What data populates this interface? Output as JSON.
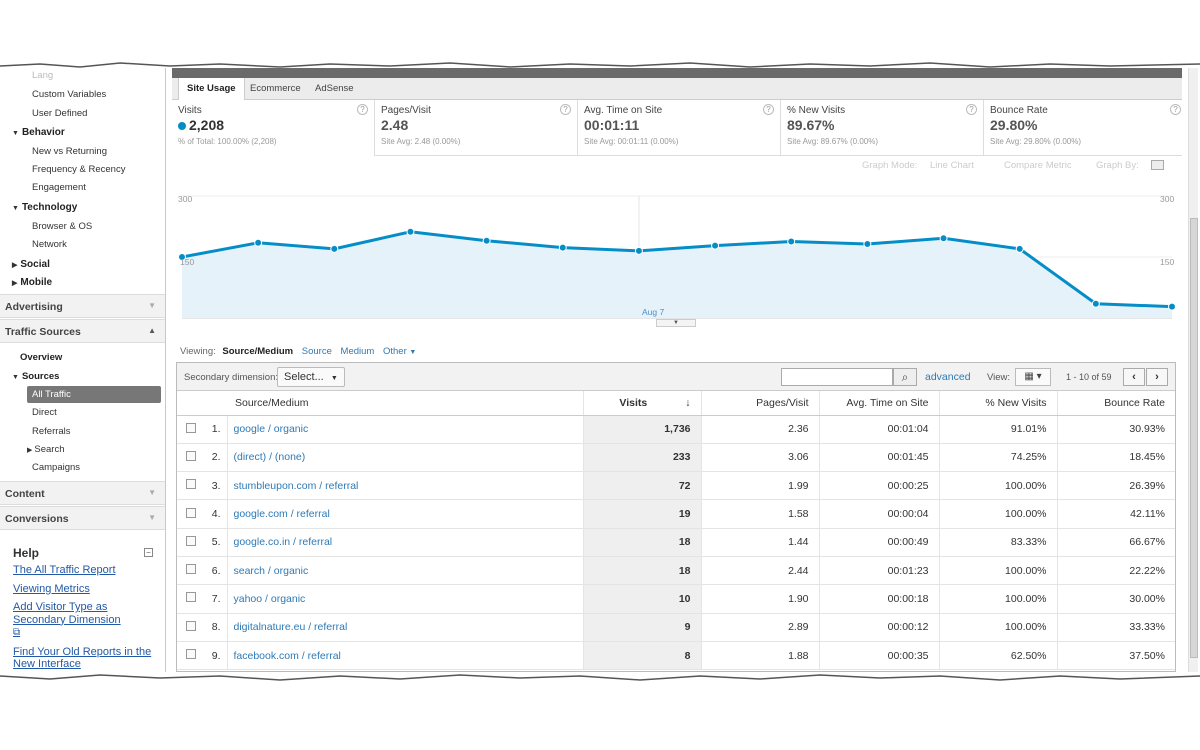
{
  "sidebar": {
    "partial_item": "Lang",
    "audience_items": [
      "Custom Variables",
      "User Defined"
    ],
    "behavior": {
      "label": "Behavior",
      "items": [
        "New vs Returning",
        "Frequency & Recency",
        "Engagement"
      ]
    },
    "technology": {
      "label": "Technology",
      "items": [
        "Browser & OS",
        "Network"
      ]
    },
    "social": "Social",
    "mobile": "Mobile",
    "advertising": "Advertising",
    "traffic_sources": "Traffic Sources",
    "overview": "Overview",
    "sources": {
      "label": "Sources",
      "items": [
        "All Traffic",
        "Direct",
        "Referrals",
        "Search",
        "Campaigns"
      ]
    },
    "content": "Content",
    "conversions": "Conversions"
  },
  "help": {
    "title": "Help",
    "links": [
      "The All Traffic Report",
      "Viewing Metrics",
      "Add Visitor Type as Secondary Dimension",
      "Find Your Old Reports in the New Interface"
    ]
  },
  "tabs": [
    "Site Usage",
    "Ecommerce",
    "AdSense"
  ],
  "metrics": [
    {
      "label": "Visits",
      "value": "2,208",
      "sub": "% of Total: 100.00% (2,208)"
    },
    {
      "label": "Pages/Visit",
      "value": "2.48",
      "sub": "Site Avg: 2.48 (0.00%)"
    },
    {
      "label": "Avg. Time on Site",
      "value": "00:01:11",
      "sub": "Site Avg: 00:01:11 (0.00%)"
    },
    {
      "label": "% New Visits",
      "value": "89.67%",
      "sub": "Site Avg: 89.67% (0.00%)"
    },
    {
      "label": "Bounce Rate",
      "value": "29.80%",
      "sub": "Site Avg: 29.80% (0.00%)"
    }
  ],
  "graph_options": {
    "mode_label": "Graph Mode:",
    "mode_value": "Line Chart",
    "compare": "Compare Metric",
    "graph_by": "Graph By:"
  },
  "chart_data": {
    "type": "area",
    "series": [
      {
        "values": [
          150,
          185,
          170,
          212,
          190,
          173,
          165,
          178,
          188,
          182,
          196,
          170,
          35,
          28
        ]
      }
    ],
    "y_ticks": [
      "300",
      "150"
    ],
    "ylim": [
      0,
      300
    ],
    "x_annotation": "Aug 7",
    "color": "#058dc7"
  },
  "viewing": {
    "label": "Viewing:",
    "active": "Source/Medium",
    "options": [
      "Source",
      "Medium",
      "Other"
    ]
  },
  "toolbar": {
    "secondary_label": "Secondary dimension:",
    "select": "Select...",
    "search_placeholder": "",
    "advanced": "advanced",
    "view_label": "View:",
    "pager": "1 - 10 of 59"
  },
  "table": {
    "headers": [
      "Source/Medium",
      "Visits",
      "Pages/Visit",
      "Avg. Time on Site",
      "% New Visits",
      "Bounce Rate"
    ],
    "rows": [
      {
        "n": "1.",
        "src": "google / organic",
        "visits": "1,736",
        "ppv": "2.36",
        "time": "00:01:04",
        "new": "91.01%",
        "bounce": "30.93%"
      },
      {
        "n": "2.",
        "src": "(direct) / (none)",
        "visits": "233",
        "ppv": "3.06",
        "time": "00:01:45",
        "new": "74.25%",
        "bounce": "18.45%"
      },
      {
        "n": "3.",
        "src": "stumbleupon.com / referral",
        "visits": "72",
        "ppv": "1.99",
        "time": "00:00:25",
        "new": "100.00%",
        "bounce": "26.39%"
      },
      {
        "n": "4.",
        "src": "google.com / referral",
        "visits": "19",
        "ppv": "1.58",
        "time": "00:00:04",
        "new": "100.00%",
        "bounce": "42.11%"
      },
      {
        "n": "5.",
        "src": "google.co.in / referral",
        "visits": "18",
        "ppv": "1.44",
        "time": "00:00:49",
        "new": "83.33%",
        "bounce": "66.67%"
      },
      {
        "n": "6.",
        "src": "search / organic",
        "visits": "18",
        "ppv": "2.44",
        "time": "00:01:23",
        "new": "100.00%",
        "bounce": "22.22%"
      },
      {
        "n": "7.",
        "src": "yahoo / organic",
        "visits": "10",
        "ppv": "1.90",
        "time": "00:00:18",
        "new": "100.00%",
        "bounce": "30.00%"
      },
      {
        "n": "8.",
        "src": "digitalnature.eu / referral",
        "visits": "9",
        "ppv": "2.89",
        "time": "00:00:12",
        "new": "100.00%",
        "bounce": "33.33%"
      },
      {
        "n": "9.",
        "src": "facebook.com / referral",
        "visits": "8",
        "ppv": "1.88",
        "time": "00:00:35",
        "new": "62.50%",
        "bounce": "37.50%"
      }
    ]
  }
}
